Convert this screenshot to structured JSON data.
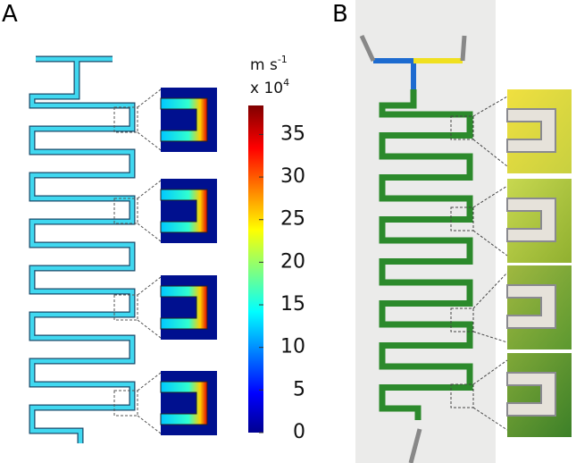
{
  "panel_a": {
    "label": "A",
    "colorbar": {
      "unit": "m s",
      "unit_exponent": "-1",
      "scale": "x 10",
      "scale_exponent": "4",
      "lim": [
        0,
        38.4
      ],
      "ticks": [
        0,
        5,
        10,
        15,
        20,
        25,
        30,
        35
      ]
    }
  },
  "panel_b": {
    "label": "B"
  }
}
